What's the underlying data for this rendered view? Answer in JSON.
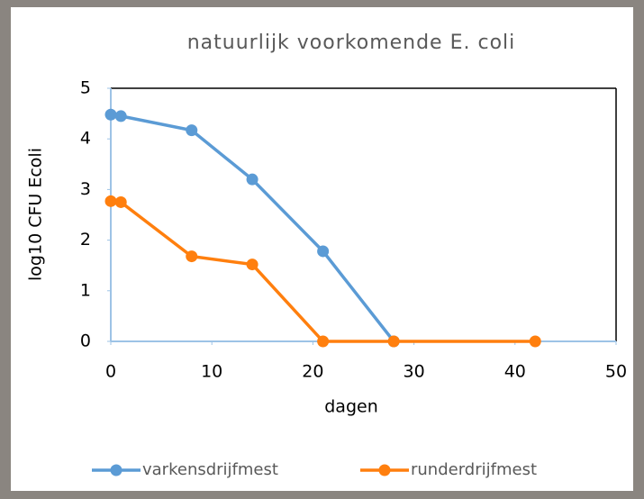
{
  "chart_data": {
    "type": "line",
    "title": "natuurlijk voorkomende E. coli",
    "xlabel": "dagen",
    "ylabel": "log10 CFU Ecoli",
    "xlim": [
      0,
      50
    ],
    "xticks": [
      0,
      10,
      20,
      30,
      40,
      50
    ],
    "ylim": [
      0,
      5
    ],
    "yticks": [
      0,
      1,
      2,
      3,
      4,
      5
    ],
    "legend": "bottom",
    "series": [
      {
        "name": "varkensdrijfmest",
        "color": "#5b9bd5",
        "x": [
          0,
          1,
          8,
          14,
          21,
          28
        ],
        "values": [
          4.48,
          4.45,
          4.17,
          3.2,
          1.78,
          0
        ]
      },
      {
        "name": "runderdrijfmest",
        "color": "#ff7f0e",
        "x": [
          0,
          1,
          8,
          14,
          21,
          28,
          42
        ],
        "values": [
          2.77,
          2.75,
          1.68,
          1.52,
          0,
          0,
          0
        ]
      }
    ]
  }
}
